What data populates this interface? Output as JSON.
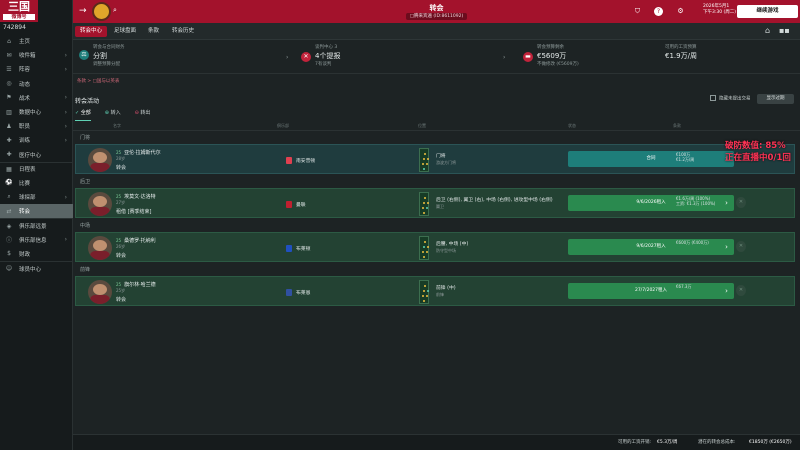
{
  "app": {
    "logo_text": "三国",
    "logo_sub": "微博号",
    "coins": "742894"
  },
  "sidebar": {
    "items": [
      {
        "label": "主页",
        "icon": "home-icon",
        "glyph": "⌂"
      },
      {
        "label": "收件箱",
        "icon": "inbox-icon",
        "glyph": "✉",
        "chev": true
      },
      {
        "label": "阵容",
        "icon": "squad-icon",
        "glyph": "☰",
        "chev": true
      },
      {
        "label": "动态",
        "icon": "dynamics-icon",
        "glyph": "◎"
      },
      {
        "label": "战术",
        "icon": "tactics-icon",
        "glyph": "⚑",
        "chev": true
      },
      {
        "label": "数据中心",
        "icon": "data-icon",
        "glyph": "▥",
        "chev": true
      },
      {
        "label": "职员",
        "icon": "staff-icon",
        "glyph": "♟",
        "chev": true
      },
      {
        "label": "训练",
        "icon": "training-icon",
        "glyph": "✚",
        "chev": true
      },
      {
        "label": "医疗中心",
        "icon": "medical-icon",
        "glyph": "✚"
      },
      {
        "label": "日程表",
        "icon": "calendar-icon",
        "glyph": "▦",
        "sep": true
      },
      {
        "label": "比赛",
        "icon": "match-icon",
        "glyph": "⚽"
      },
      {
        "label": "球探部",
        "icon": "scouting-icon",
        "glyph": "⌕",
        "chev": true
      },
      {
        "label": "转会",
        "icon": "transfer-icon",
        "glyph": "⇄",
        "active": true
      },
      {
        "label": "俱乐部远景",
        "icon": "vision-icon",
        "glyph": "◈",
        "sep": true
      },
      {
        "label": "俱乐部信息",
        "icon": "club-info-icon",
        "glyph": "ⓘ",
        "chev": true
      },
      {
        "label": "财政",
        "icon": "finance-icon",
        "glyph": "$"
      },
      {
        "label": "球员中心",
        "icon": "player-hub-icon",
        "glyph": "☺",
        "sep": true
      }
    ]
  },
  "topbar": {
    "title": "转会",
    "subtitle": "□腾来宾遍 (ID:8611092)",
    "date_line1": "2026年5月1",
    "date_line2": "下午3:30 (周二)",
    "continue_label": "继续游戏"
  },
  "subnav": {
    "tabs": [
      "转会中心",
      "足球盘面",
      "条款",
      "转会历史"
    ]
  },
  "info": {
    "budget_label": "转会与合同财务",
    "budget_value": "分割",
    "budget_sub": "调整预算分配",
    "negotiations_label": "谈判中心 3",
    "negotiations_value": "4个提报",
    "negotiations_sub": "7有谈判",
    "transfer_budget_label": "转会预算剩余",
    "transfer_budget_value": "€5609万",
    "transfer_budget_sub": "不做修改 (€5609万)",
    "wage_label": "可用的工资预算",
    "wage_value": "€1.9万/周"
  },
  "breadcrumb": "条款 > □国与以英表",
  "section_title": "转会活动",
  "hide_label": "隐藏未提出交易",
  "show_label": "显示过期",
  "filters": [
    "全部",
    "转入",
    "转出"
  ],
  "columns": [
    "名字",
    "俱乐部",
    "位置",
    "状态",
    "条款"
  ],
  "groups": [
    {
      "title": "门将",
      "players": [
        {
          "name": "亚伦·拉姆斯代尔",
          "badge": "25",
          "age": "28岁",
          "status": "转会",
          "club": "南安普顿",
          "pos": "门将",
          "pos_sub": "游波方门将",
          "deal": "合同",
          "deal2": "€100万",
          "deal3": "€1.2万/周",
          "crest": "#e04050",
          "style": "teal"
        }
      ]
    },
    {
      "title": "后卫",
      "players": [
        {
          "name": "埃莫文·达洛特",
          "badge": "25",
          "age": "27岁",
          "status": "租借 [赛季结束]",
          "club": "曼联",
          "pos": "后卫 (右侧), 翼卫 (右), 中场 (右侧), 进攻型中场 (右侧)",
          "pos_sub": "翼卫",
          "deal": "9/6/2026租入",
          "deal2": "€1.6万/周 (100%)",
          "deal3": "工资: €1.3万 (100%)",
          "crest": "#c02030",
          "style": "green"
        }
      ]
    },
    {
      "title": "中场",
      "players": [
        {
          "name": "桑德罗·托纳利",
          "badge": "25",
          "age": "26岁",
          "status": "转会",
          "club": "布莱顿",
          "pos": "后腰, 中场 (中)",
          "pos_sub": "防守型中场",
          "deal": "9/6/2027租入",
          "deal2": "€600万 (€400万)",
          "deal3": "",
          "crest": "#2050c0",
          "style": "green"
        }
      ]
    },
    {
      "title": "前锋",
      "players": [
        {
          "name": "旗尔林·哈兰德",
          "badge": "25",
          "age": "25岁",
          "status": "转会",
          "club": "布莱恩",
          "pos": "前锋 (中)",
          "pos_sub": "前锋",
          "deal": "27/7/2027租入",
          "deal2": "€67.3万",
          "deal3": "",
          "crest": "#3050a0",
          "style": "green"
        }
      ]
    }
  ],
  "overlay": {
    "line1": "破防数值: 85%",
    "line2": "正在直播中0/1回"
  },
  "statusbar": {
    "wage_label": "可用的工资开销:",
    "wage_value": "€5.3万/周",
    "total_label": "潜在的转会总成本:",
    "total_value": "€1850万 (€2650万)"
  }
}
